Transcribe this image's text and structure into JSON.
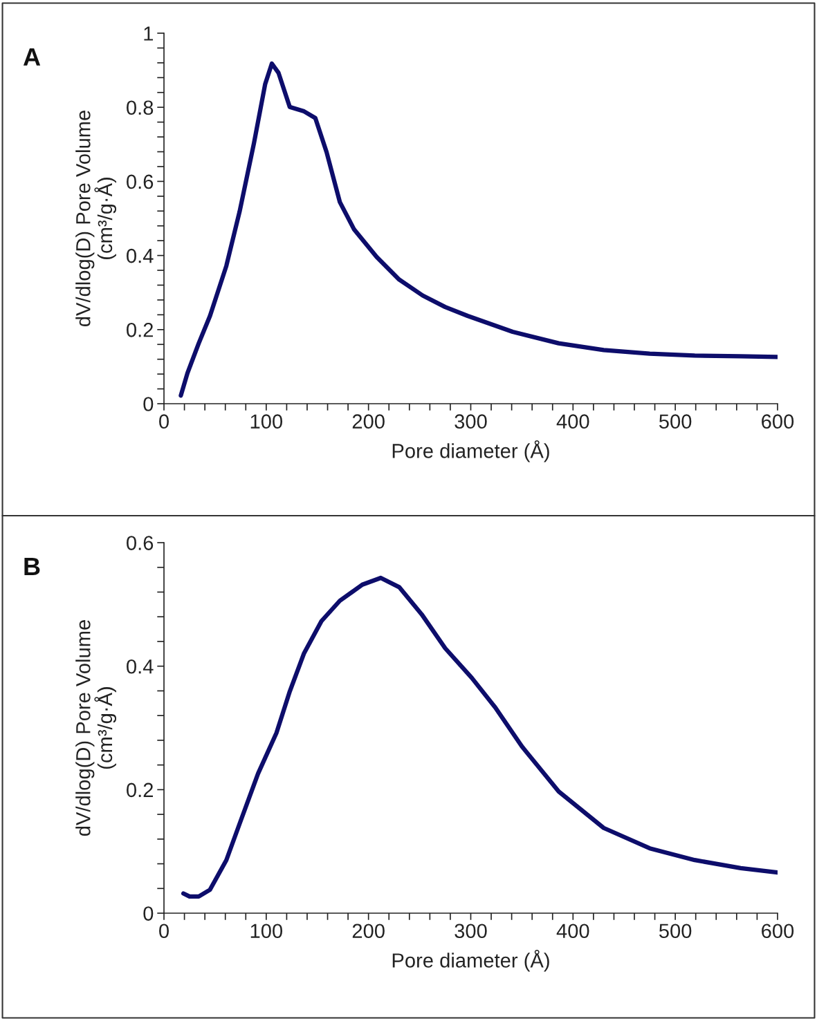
{
  "chart_data": [
    {
      "type": "line",
      "xlabel": "Pore diameter (Å)",
      "ylabel": "dV/dlog(D) Pore Volume\n(cm³/g·Å)",
      "annotations": [
        "A"
      ],
      "series": [
        {
          "color": "#0d0d6b",
          "x": [
            16.5,
            23,
            34,
            45,
            61,
            74,
            88,
            99,
            105.5,
            112,
            123,
            137,
            148,
            159,
            172,
            186,
            208,
            230,
            253,
            275,
            297,
            341,
            386,
            430,
            475,
            519,
            564,
            600
          ],
          "values": [
            0.022,
            0.083,
            0.163,
            0.237,
            0.372,
            0.519,
            0.703,
            0.863,
            0.918,
            0.893,
            0.801,
            0.789,
            0.771,
            0.679,
            0.544,
            0.47,
            0.396,
            0.335,
            0.292,
            0.261,
            0.237,
            0.194,
            0.163,
            0.145,
            0.135,
            0.13,
            0.128,
            0.126
          ]
        }
      ],
      "xlim": [
        0,
        600
      ],
      "ylim": [
        0,
        1
      ],
      "xticks": [
        0,
        {
          "value": 20,
          "label": null
        },
        {
          "value": 40,
          "label": null
        },
        {
          "value": 60,
          "label": null
        },
        {
          "value": 80,
          "label": null
        },
        100,
        {
          "value": 120,
          "label": null
        },
        {
          "value": 140,
          "label": null
        },
        {
          "value": 160,
          "label": null
        },
        {
          "value": 180,
          "label": null
        },
        200,
        {
          "value": 220,
          "label": null
        },
        {
          "value": 240,
          "label": null
        },
        {
          "value": 260,
          "label": null
        },
        {
          "value": 280,
          "label": null
        },
        300,
        {
          "value": 320,
          "label": null
        },
        {
          "value": 340,
          "label": null
        },
        {
          "value": 360,
          "label": null
        },
        {
          "value": 380,
          "label": null
        },
        400,
        {
          "value": 420,
          "label": null
        },
        {
          "value": 440,
          "label": null
        },
        {
          "value": 460,
          "label": null
        },
        {
          "value": 480,
          "label": null
        },
        500,
        {
          "value": 520,
          "label": null
        },
        {
          "value": 540,
          "label": null
        },
        {
          "value": 560,
          "label": null
        },
        {
          "value": 580,
          "label": null
        },
        600
      ],
      "yticks": [
        0,
        {
          "value": 0.04,
          "label": null
        },
        {
          "value": 0.08,
          "label": null
        },
        {
          "value": 0.12,
          "label": null
        },
        {
          "value": 0.16,
          "label": null
        },
        0.2,
        {
          "value": 0.24,
          "label": null
        },
        {
          "value": 0.28,
          "label": null
        },
        {
          "value": 0.32,
          "label": null
        },
        {
          "value": 0.36,
          "label": null
        },
        0.4,
        {
          "value": 0.44,
          "label": null
        },
        {
          "value": 0.48,
          "label": null
        },
        {
          "value": 0.52,
          "label": null
        },
        {
          "value": 0.56,
          "label": null
        },
        0.6,
        {
          "value": 0.64,
          "label": null
        },
        {
          "value": 0.68,
          "label": null
        },
        {
          "value": 0.72,
          "label": null
        },
        {
          "value": 0.76,
          "label": null
        },
        0.8,
        {
          "value": 0.84,
          "label": null
        },
        {
          "value": 0.88,
          "label": null
        },
        {
          "value": 0.92,
          "label": null
        },
        {
          "value": 0.96,
          "label": null
        },
        1
      ],
      "grid": false,
      "legend": false,
      "marker": "none",
      "line_style": "solid"
    },
    {
      "type": "line",
      "xlabel": "Pore diameter (Å)",
      "ylabel": "dV/dlog(D) Pore Volume\n(cm³/g·Å)",
      "annotations": [
        "B"
      ],
      "series": [
        {
          "color": "#0d0d6b",
          "x": [
            19,
            25,
            34,
            45,
            61,
            74,
            92,
            110,
            123,
            137,
            154,
            172,
            194,
            212,
            230,
            252,
            275,
            301,
            324,
            350,
            386,
            430,
            475,
            519,
            564,
            600
          ],
          "values": [
            0.032,
            0.027,
            0.027,
            0.038,
            0.086,
            0.145,
            0.226,
            0.292,
            0.359,
            0.421,
            0.473,
            0.506,
            0.532,
            0.543,
            0.528,
            0.484,
            0.429,
            0.381,
            0.333,
            0.27,
            0.197,
            0.138,
            0.105,
            0.086,
            0.073,
            0.066
          ]
        }
      ],
      "xlim": [
        0,
        600
      ],
      "ylim": [
        0,
        0.6
      ],
      "xticks": [
        0,
        {
          "value": 20,
          "label": null
        },
        {
          "value": 40,
          "label": null
        },
        {
          "value": 60,
          "label": null
        },
        {
          "value": 80,
          "label": null
        },
        100,
        {
          "value": 120,
          "label": null
        },
        {
          "value": 140,
          "label": null
        },
        {
          "value": 160,
          "label": null
        },
        {
          "value": 180,
          "label": null
        },
        200,
        {
          "value": 220,
          "label": null
        },
        {
          "value": 240,
          "label": null
        },
        {
          "value": 260,
          "label": null
        },
        {
          "value": 280,
          "label": null
        },
        300,
        {
          "value": 320,
          "label": null
        },
        {
          "value": 340,
          "label": null
        },
        {
          "value": 360,
          "label": null
        },
        {
          "value": 380,
          "label": null
        },
        400,
        {
          "value": 420,
          "label": null
        },
        {
          "value": 440,
          "label": null
        },
        {
          "value": 460,
          "label": null
        },
        {
          "value": 480,
          "label": null
        },
        500,
        {
          "value": 520,
          "label": null
        },
        {
          "value": 540,
          "label": null
        },
        {
          "value": 560,
          "label": null
        },
        {
          "value": 580,
          "label": null
        },
        600
      ],
      "yticks": [
        0,
        {
          "value": 0.04,
          "label": null
        },
        {
          "value": 0.08,
          "label": null
        },
        {
          "value": 0.12,
          "label": null
        },
        {
          "value": 0.16,
          "label": null
        },
        0.2,
        {
          "value": 0.24,
          "label": null
        },
        {
          "value": 0.28,
          "label": null
        },
        {
          "value": 0.32,
          "label": null
        },
        {
          "value": 0.36,
          "label": null
        },
        0.4,
        {
          "value": 0.44,
          "label": null
        },
        {
          "value": 0.48,
          "label": null
        },
        {
          "value": 0.52,
          "label": null
        },
        {
          "value": 0.56,
          "label": null
        },
        0.6
      ],
      "grid": false,
      "legend": false,
      "marker": "none",
      "line_style": "solid"
    }
  ]
}
